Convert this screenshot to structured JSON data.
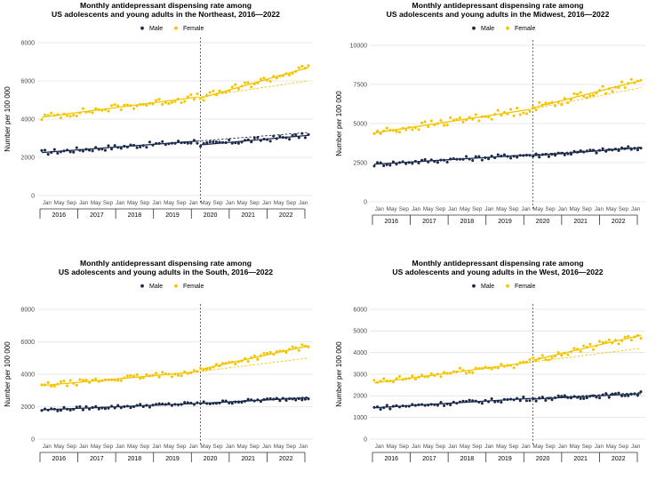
{
  "colors": {
    "male": "#1b2a4a",
    "female": "#f5c400",
    "grid": "#e2e2e2",
    "axis": "#333333"
  },
  "chart_data": [
    {
      "type": "scatter",
      "region": "Northeast",
      "title": "Monthly antidepressant dispensing rate among",
      "title2": "US adolescents and young adults in the Northeast, 2016—2022",
      "xlabel": "",
      "ylabel": "Number per 100 000",
      "ylim": [
        0,
        8000
      ],
      "yticks": [
        0,
        2000,
        4000,
        6000,
        8000
      ],
      "month_labels": [
        "Jan",
        "May",
        "Sep",
        "Jan",
        "May",
        "Sep",
        "Jan",
        "May",
        "Sep",
        "Jan",
        "May",
        "Sep",
        "Jan",
        "May",
        "Sep",
        "Jan",
        "May",
        "Sep",
        "Jan",
        "May",
        "Sep",
        "Jan"
      ],
      "years": [
        "2016",
        "2017",
        "2018",
        "2019",
        "2020",
        "2021",
        "2022"
      ],
      "legend": [
        "Male",
        "Female"
      ],
      "interruption": "2020-03",
      "series": [
        {
          "name": "Male",
          "pre_start": 2250,
          "pre_end": 2850,
          "post_start": 2650,
          "post_end": 3150,
          "counterfactual_end": 3300
        },
        {
          "name": "Female",
          "pre_start": 4100,
          "pre_end": 5150,
          "post_start": 5100,
          "post_end": 6700,
          "counterfactual_end": 6000
        }
      ]
    },
    {
      "type": "scatter",
      "region": "Midwest",
      "title": "Monthly antidepressant dispensing rate among",
      "title2": "US adolescents and young adults in the Midwest, 2016—2022",
      "xlabel": "",
      "ylabel": "Number per 100 000",
      "ylim": [
        0,
        10000
      ],
      "yticks": [
        0,
        2500,
        5000,
        7500,
        10000
      ],
      "month_labels": [
        "Jan",
        "May",
        "Sep",
        "Jan",
        "May",
        "Sep",
        "Jan",
        "May",
        "Sep",
        "Jan",
        "May",
        "Sep",
        "Jan",
        "May",
        "Sep",
        "Jan",
        "May",
        "Sep",
        "Jan",
        "May",
        "Sep",
        "Jan"
      ],
      "years": [
        "2016",
        "2017",
        "2018",
        "2019",
        "2020",
        "2021",
        "2022"
      ],
      "legend": [
        "Male",
        "Female"
      ],
      "interruption": "2020-03",
      "series": [
        {
          "name": "Male",
          "pre_start": 2400,
          "pre_end": 3000,
          "post_start": 2950,
          "post_end": 3450,
          "counterfactual_end": 3500
        },
        {
          "name": "Female",
          "pre_start": 4400,
          "pre_end": 5900,
          "post_start": 6000,
          "post_end": 7750,
          "counterfactual_end": 7300
        }
      ]
    },
    {
      "type": "scatter",
      "region": "South",
      "title": "Monthly antidepressant dispensing rate among",
      "title2": "US adolescents and young adults in the South, 2016—2022",
      "xlabel": "",
      "ylabel": "Number per 100 000",
      "ylim": [
        0,
        8000
      ],
      "yticks": [
        0,
        2000,
        4000,
        6000,
        8000
      ],
      "month_labels": [
        "Jan",
        "May",
        "Sep",
        "Jan",
        "May",
        "Sep",
        "Jan",
        "May",
        "Sep",
        "Jan",
        "May",
        "Sep",
        "Jan",
        "May",
        "Sep",
        "Jan",
        "May",
        "Sep",
        "Jan",
        "May",
        "Sep",
        "Jan"
      ],
      "years": [
        "2016",
        "2017",
        "2018",
        "2019",
        "2020",
        "2021",
        "2022"
      ],
      "legend": [
        "Male",
        "Female"
      ],
      "interruption": "2020-03",
      "series": [
        {
          "name": "Male",
          "pre_start": 1800,
          "pre_end": 2200,
          "post_start": 2200,
          "post_end": 2550,
          "counterfactual_end": 2600
        },
        {
          "name": "Female",
          "pre_start": 3300,
          "pre_end": 4150,
          "post_start": 4300,
          "post_end": 5750,
          "counterfactual_end": 5000
        }
      ]
    },
    {
      "type": "scatter",
      "region": "West",
      "title": "Monthly antidepressant dispensing rate among",
      "title2": "US adolescents and young adults in the West, 2016—2022",
      "xlabel": "",
      "ylabel": "Number per 100 000",
      "ylim": [
        0,
        6000
      ],
      "yticks": [
        0,
        1000,
        2000,
        3000,
        4000,
        5000,
        6000
      ],
      "month_labels": [
        "Jan",
        "May",
        "Sep",
        "Jan",
        "May",
        "Sep",
        "Jan",
        "May",
        "Sep",
        "Jan",
        "May",
        "Sep",
        "Jan",
        "May",
        "Sep",
        "Jan",
        "May",
        "Sep",
        "Jan",
        "May",
        "Sep",
        "Jan"
      ],
      "years": [
        "2016",
        "2017",
        "2018",
        "2019",
        "2020",
        "2021",
        "2022"
      ],
      "legend": [
        "Male",
        "Female"
      ],
      "interruption": "2020-03",
      "series": [
        {
          "name": "Male",
          "pre_start": 1450,
          "pre_end": 1880,
          "post_start": 1850,
          "post_end": 2100,
          "counterfactual_end": 2150
        },
        {
          "name": "Female",
          "pre_start": 2600,
          "pre_end": 3550,
          "post_start": 3650,
          "post_end": 4800,
          "counterfactual_end": 4200
        }
      ]
    }
  ]
}
